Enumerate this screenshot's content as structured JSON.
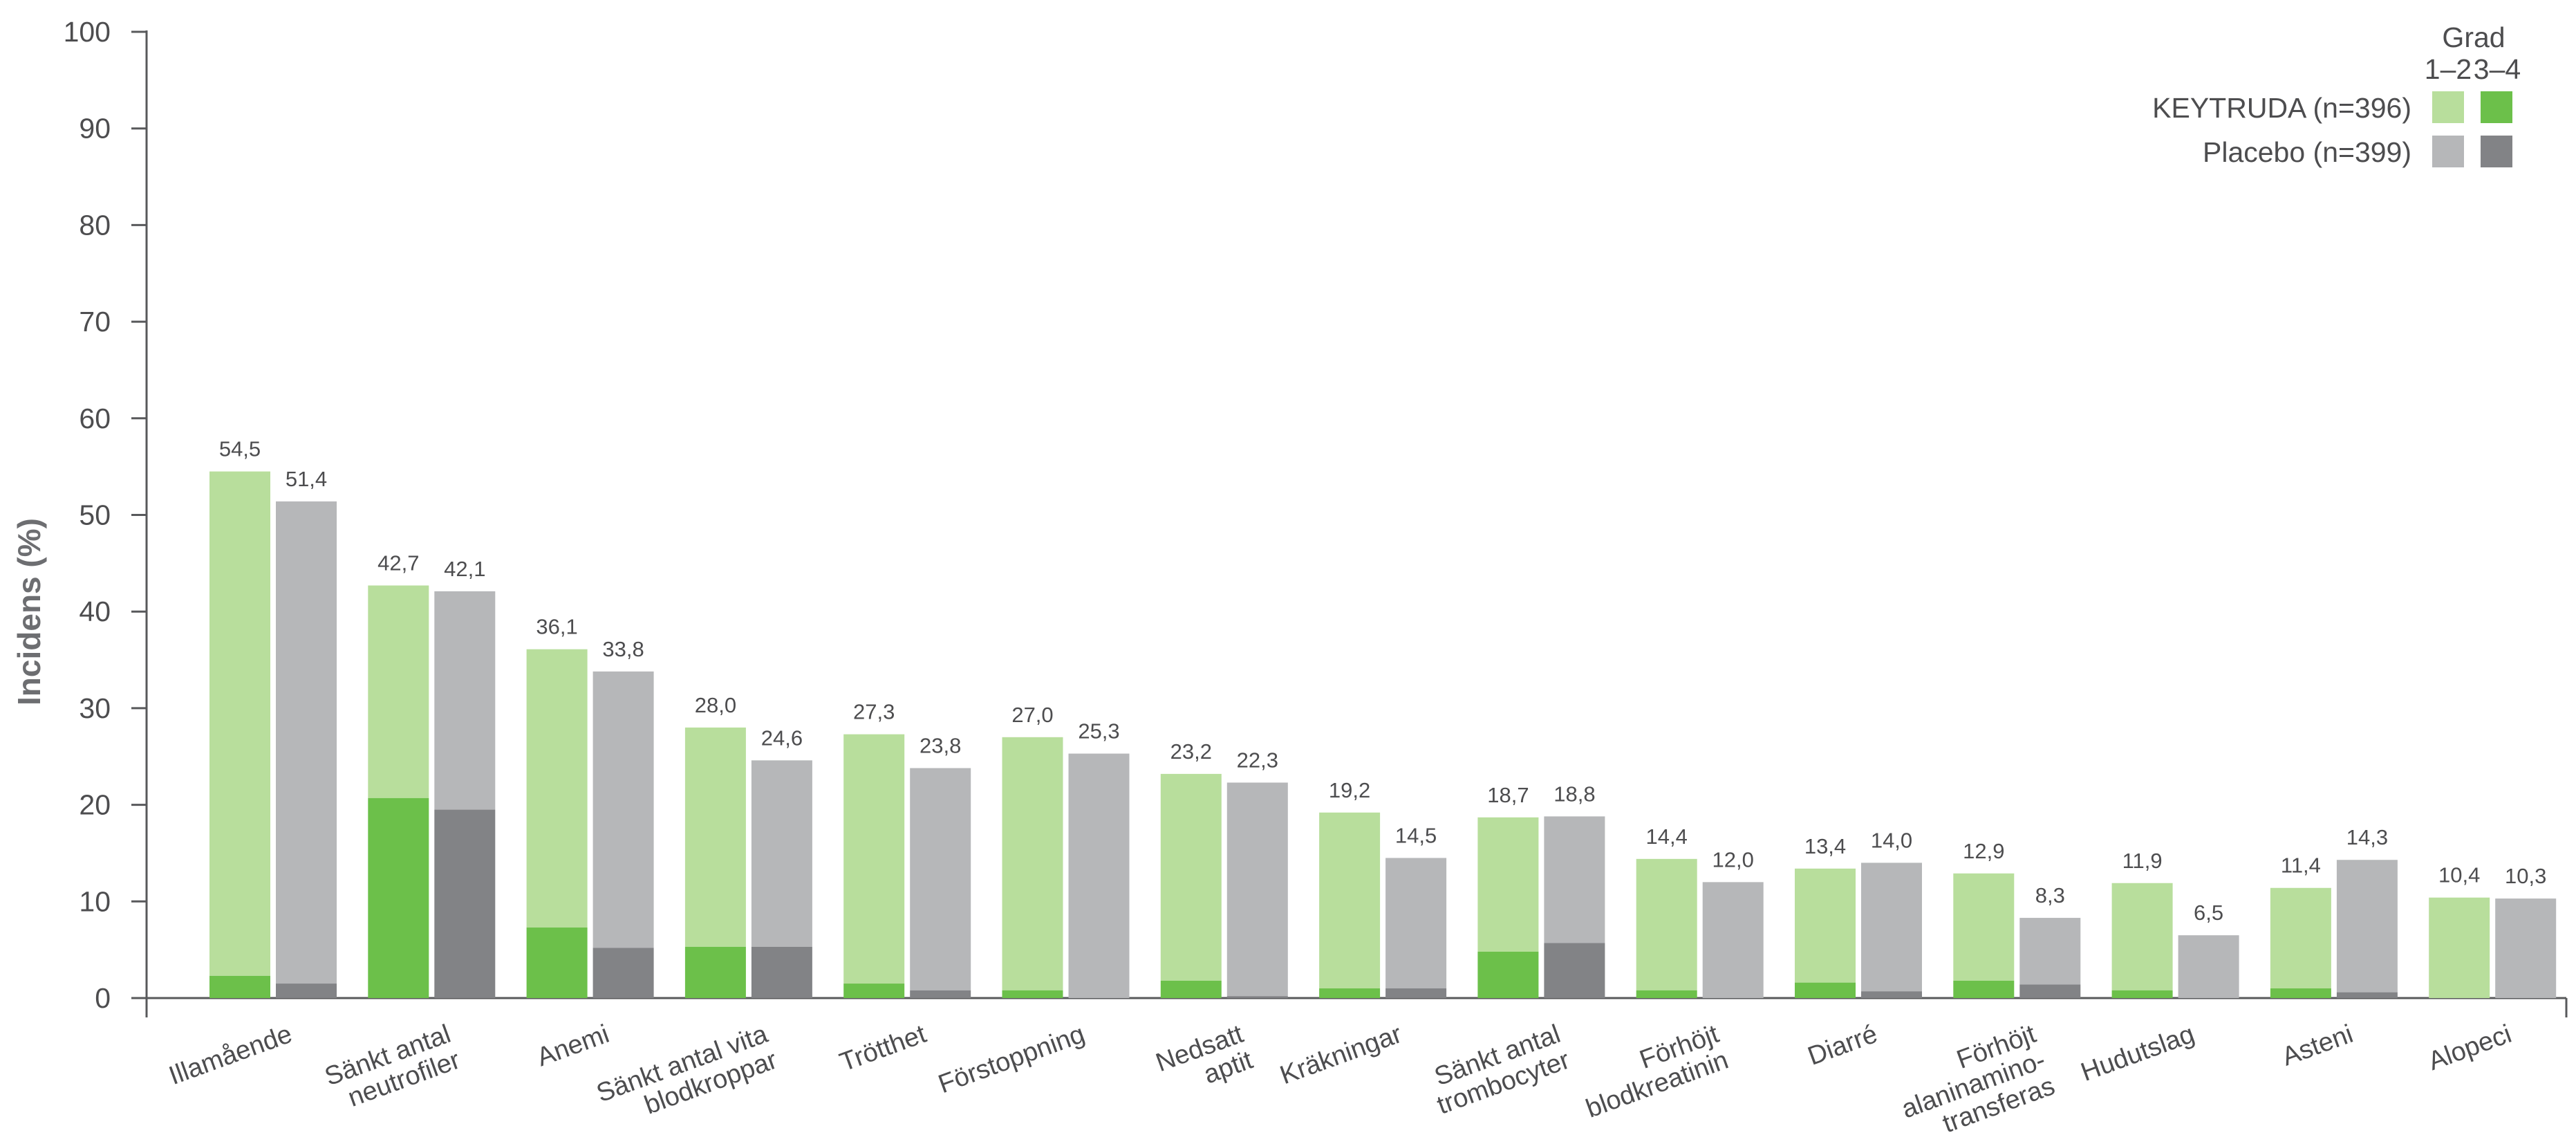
{
  "chart_data": {
    "type": "bar",
    "ylabel": "Incidens (%)",
    "ylim": [
      0,
      100
    ],
    "yticks": [
      "0",
      "10",
      "20",
      "30",
      "40",
      "50",
      "60",
      "70",
      "80",
      "90",
      "100"
    ],
    "categories": [
      "Illamående",
      "Sänkt antal neutrofiler",
      "Anemi",
      "Sänkt antal vita blodkroppar",
      "Trötthet",
      "Förstoppning",
      "Nedsatt aptit",
      "Kräkningar",
      "Sänkt antal trombocyter",
      "Förhöjt blodkreatinin",
      "Diarré",
      "Förhöjt alaninamino-transferas",
      "Hudutslag",
      "Asteni",
      "Alopeci"
    ],
    "category_lines": [
      [
        "Illamående"
      ],
      [
        "Sänkt antal",
        "neutrofiler"
      ],
      [
        "Anemi"
      ],
      [
        "Sänkt antal vita",
        "blodkroppar"
      ],
      [
        "Trötthet"
      ],
      [
        "Förstoppning"
      ],
      [
        "Nedsatt",
        "aptit"
      ],
      [
        "Kräkningar"
      ],
      [
        "Sänkt antal",
        "trombocyter"
      ],
      [
        "Förhöjt",
        "blodkreatinin"
      ],
      [
        "Diarré"
      ],
      [
        "Förhöjt",
        "alaninamino-",
        "transferas"
      ],
      [
        "Hudutslag"
      ],
      [
        "Asteni"
      ],
      [
        "Alopeci"
      ]
    ],
    "series": [
      {
        "name": "KEYTRUDA (n=396)",
        "totals": [
          54.5,
          42.7,
          36.1,
          28.0,
          27.3,
          27.0,
          23.2,
          19.2,
          18.7,
          14.4,
          13.4,
          12.9,
          11.9,
          11.4,
          10.4
        ],
        "total_labels": [
          "54,5",
          "42,7",
          "36,1",
          "28,0",
          "27,3",
          "27,0",
          "23,2",
          "19,2",
          "18,7",
          "14,4",
          "13,4",
          "12,9",
          "11,9",
          "11,4",
          "10,4"
        ],
        "grade_3_4": [
          2.3,
          20.7,
          7.3,
          5.3,
          1.5,
          0.8,
          1.8,
          1.0,
          4.8,
          0.8,
          1.6,
          1.8,
          0.8,
          1.0,
          0.0
        ],
        "color_grade_1_2": "#b8de9c",
        "color_grade_3_4": "#6cc04a"
      },
      {
        "name": "Placebo  (n=399)",
        "totals": [
          51.4,
          42.1,
          33.8,
          24.6,
          23.8,
          25.3,
          22.3,
          14.5,
          18.8,
          12.0,
          14.0,
          8.3,
          6.5,
          14.3,
          10.3
        ],
        "total_labels": [
          "51,4",
          "42,1",
          "33,8",
          "24,6",
          "23,8",
          "25,3",
          "22,3",
          "14,5",
          "18,8",
          "12,0",
          "14,0",
          "8,3",
          "6,5",
          "14,3",
          "10,3"
        ],
        "grade_3_4": [
          1.5,
          19.5,
          5.2,
          5.3,
          0.8,
          0.0,
          0.2,
          1.0,
          5.7,
          0.0,
          0.7,
          1.4,
          0.0,
          0.6,
          0.0
        ],
        "color_grade_1_2": "#b6b7b9",
        "color_grade_3_4": "#828386"
      }
    ],
    "legend": {
      "title": "Grad",
      "columns": [
        "1–2",
        "3–4"
      ],
      "placement": "top-right"
    },
    "grid": false
  }
}
